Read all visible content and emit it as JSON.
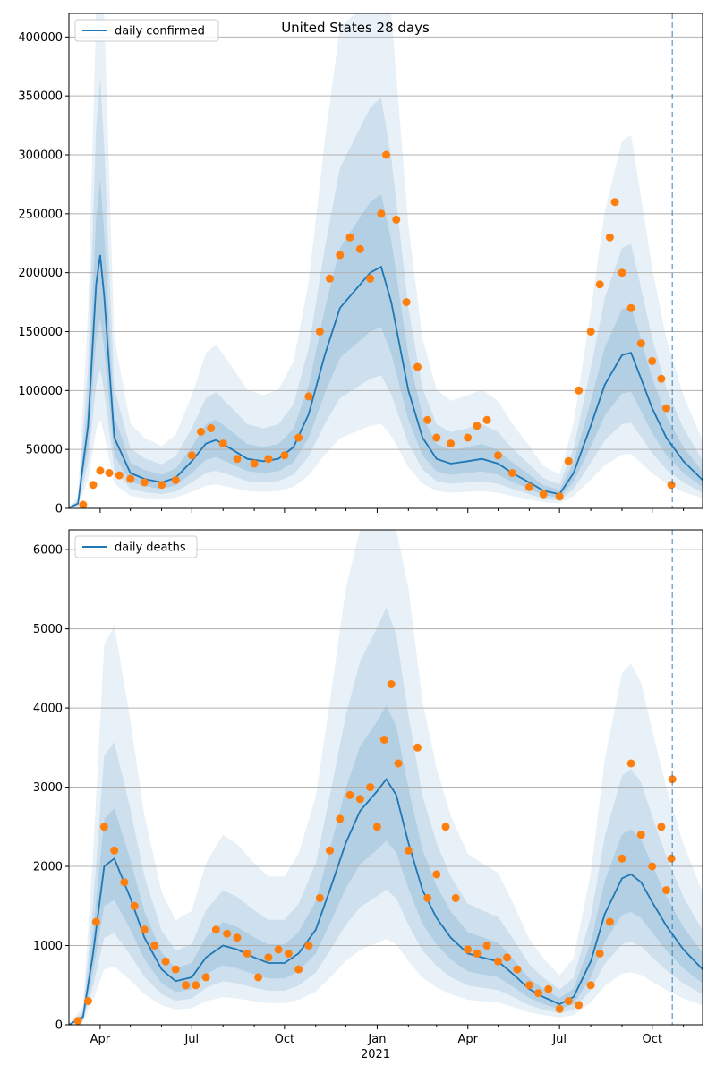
{
  "figure_title": "United States 28 days",
  "x_axis": {
    "month_ticks": [
      "Apr",
      "Jul",
      "Oct",
      "Jan",
      "Apr",
      "Jul",
      "Oct"
    ],
    "year_label": "2021"
  },
  "colors": {
    "line": "#1f77b4",
    "points": "#ff7f0e",
    "band": "#1f77b4",
    "grid": "#b0b0b0",
    "forecast_marker": "#1f77b4"
  },
  "chart_data": [
    {
      "type": "line",
      "title": "United States 28 days",
      "legend_position": "top-left",
      "grid": "horizontal",
      "ylim": [
        0,
        420000
      ],
      "yticks": [
        0,
        50000,
        100000,
        150000,
        200000,
        250000,
        300000,
        350000,
        400000
      ],
      "ytick_labels": [
        "0",
        "50000",
        "100000",
        "150000",
        "200000",
        "250000",
        "300000",
        "350000",
        "400000"
      ],
      "forecast_date": "2021-10-21",
      "series": [
        {
          "name": "daily confirmed",
          "kind": "line",
          "x": [
            "2020-03-01",
            "2020-03-10",
            "2020-03-20",
            "2020-03-28",
            "2020-04-01",
            "2020-04-05",
            "2020-04-15",
            "2020-05-01",
            "2020-05-15",
            "2020-06-01",
            "2020-06-15",
            "2020-07-01",
            "2020-07-15",
            "2020-07-25",
            "2020-08-10",
            "2020-08-25",
            "2020-09-10",
            "2020-09-25",
            "2020-10-10",
            "2020-10-25",
            "2020-11-10",
            "2020-11-25",
            "2020-12-10",
            "2020-12-25",
            "2021-01-05",
            "2021-01-15",
            "2021-02-01",
            "2021-02-15",
            "2021-03-01",
            "2021-03-15",
            "2021-04-01",
            "2021-04-15",
            "2021-05-01",
            "2021-05-15",
            "2021-06-01",
            "2021-06-15",
            "2021-07-01",
            "2021-07-15",
            "2021-08-01",
            "2021-08-15",
            "2021-09-01",
            "2021-09-10",
            "2021-09-20",
            "2021-10-01",
            "2021-10-15",
            "2021-11-01",
            "2021-11-20"
          ],
          "y": [
            500,
            4000,
            70000,
            190000,
            215000,
            180000,
            60000,
            30000,
            25000,
            22000,
            26000,
            40000,
            55000,
            58000,
            50000,
            42000,
            40000,
            42000,
            52000,
            80000,
            130000,
            170000,
            185000,
            200000,
            205000,
            175000,
            100000,
            60000,
            42000,
            38000,
            40000,
            42000,
            38000,
            30000,
            22000,
            15000,
            12000,
            30000,
            70000,
            105000,
            130000,
            132000,
            110000,
            85000,
            60000,
            40000,
            24000
          ]
        },
        {
          "name": "",
          "kind": "scatter",
          "x": [
            "2020-03-15",
            "2020-03-25",
            "2020-04-01",
            "2020-04-10",
            "2020-04-20",
            "2020-05-01",
            "2020-05-15",
            "2020-06-01",
            "2020-06-15",
            "2020-07-01",
            "2020-07-10",
            "2020-07-20",
            "2020-08-01",
            "2020-08-15",
            "2020-09-01",
            "2020-09-15",
            "2020-10-01",
            "2020-10-15",
            "2020-10-25",
            "2020-11-05",
            "2020-11-15",
            "2020-11-25",
            "2020-12-05",
            "2020-12-15",
            "2020-12-25",
            "2021-01-05",
            "2021-01-10",
            "2021-01-20",
            "2021-01-30",
            "2021-02-10",
            "2021-02-20",
            "2021-03-01",
            "2021-03-15",
            "2021-04-01",
            "2021-04-10",
            "2021-04-20",
            "2021-05-01",
            "2021-05-15",
            "2021-06-01",
            "2021-06-15",
            "2021-07-01",
            "2021-07-10",
            "2021-07-20",
            "2021-08-01",
            "2021-08-10",
            "2021-08-20",
            "2021-08-25",
            "2021-09-01",
            "2021-09-10",
            "2021-09-20",
            "2021-10-01",
            "2021-10-10",
            "2021-10-15",
            "2021-10-20"
          ],
          "y": [
            3000,
            20000,
            32000,
            30000,
            28000,
            25000,
            22000,
            20000,
            24000,
            45000,
            65000,
            68000,
            55000,
            42000,
            38000,
            42000,
            45000,
            60000,
            95000,
            150000,
            195000,
            215000,
            230000,
            220000,
            195000,
            250000,
            300000,
            245000,
            175000,
            120000,
            75000,
            60000,
            55000,
            60000,
            70000,
            75000,
            45000,
            30000,
            18000,
            12000,
            10000,
            40000,
            100000,
            150000,
            190000,
            230000,
            260000,
            200000,
            170000,
            140000,
            125000,
            110000,
            85000,
            20000
          ]
        }
      ]
    },
    {
      "type": "line",
      "title": "",
      "legend_position": "top-left",
      "grid": "horizontal",
      "ylim": [
        0,
        6250
      ],
      "yticks": [
        0,
        1000,
        2000,
        3000,
        4000,
        5000,
        6000
      ],
      "ytick_labels": [
        "0",
        "1000",
        "2000",
        "3000",
        "4000",
        "5000",
        "6000"
      ],
      "forecast_date": "2021-10-21",
      "series": [
        {
          "name": "daily deaths",
          "kind": "line",
          "x": [
            "2020-03-01",
            "2020-03-15",
            "2020-03-25",
            "2020-04-05",
            "2020-04-15",
            "2020-05-01",
            "2020-05-15",
            "2020-06-01",
            "2020-06-15",
            "2020-07-01",
            "2020-07-15",
            "2020-08-01",
            "2020-08-15",
            "2020-09-01",
            "2020-09-15",
            "2020-10-01",
            "2020-10-15",
            "2020-11-01",
            "2020-11-15",
            "2020-12-01",
            "2020-12-15",
            "2021-01-01",
            "2021-01-10",
            "2021-01-20",
            "2021-02-01",
            "2021-02-15",
            "2021-03-01",
            "2021-03-15",
            "2021-04-01",
            "2021-04-15",
            "2021-05-01",
            "2021-05-15",
            "2021-06-01",
            "2021-06-15",
            "2021-07-01",
            "2021-07-15",
            "2021-08-01",
            "2021-08-15",
            "2021-09-01",
            "2021-09-10",
            "2021-09-20",
            "2021-10-01",
            "2021-10-15",
            "2021-11-01",
            "2021-11-20"
          ],
          "y": [
            0,
            100,
            900,
            2000,
            2100,
            1600,
            1100,
            700,
            550,
            600,
            850,
            1000,
            950,
            850,
            780,
            780,
            900,
            1200,
            1700,
            2300,
            2700,
            2950,
            3100,
            2900,
            2300,
            1700,
            1350,
            1100,
            900,
            850,
            800,
            650,
            450,
            350,
            260,
            350,
            800,
            1400,
            1850,
            1900,
            1800,
            1550,
            1250,
            950,
            700
          ]
        },
        {
          "name": "",
          "kind": "scatter",
          "x": [
            "2020-03-10",
            "2020-03-20",
            "2020-03-28",
            "2020-04-05",
            "2020-04-15",
            "2020-04-25",
            "2020-05-05",
            "2020-05-15",
            "2020-05-25",
            "2020-06-05",
            "2020-06-15",
            "2020-06-25",
            "2020-07-05",
            "2020-07-15",
            "2020-07-25",
            "2020-08-05",
            "2020-08-15",
            "2020-08-25",
            "2020-09-05",
            "2020-09-15",
            "2020-09-25",
            "2020-10-05",
            "2020-10-15",
            "2020-10-25",
            "2020-11-05",
            "2020-11-15",
            "2020-11-25",
            "2020-12-05",
            "2020-12-15",
            "2020-12-25",
            "2021-01-01",
            "2021-01-08",
            "2021-01-15",
            "2021-01-22",
            "2021-02-01",
            "2021-02-10",
            "2021-02-20",
            "2021-03-01",
            "2021-03-10",
            "2021-03-20",
            "2021-04-01",
            "2021-04-10",
            "2021-04-20",
            "2021-05-01",
            "2021-05-10",
            "2021-05-20",
            "2021-06-01",
            "2021-06-10",
            "2021-06-20",
            "2021-07-01",
            "2021-07-10",
            "2021-07-20",
            "2021-08-01",
            "2021-08-10",
            "2021-08-20",
            "2021-09-01",
            "2021-09-10",
            "2021-09-20",
            "2021-10-01",
            "2021-10-10",
            "2021-10-15",
            "2021-10-20",
            "2021-10-21"
          ],
          "y": [
            50,
            300,
            1300,
            2500,
            2200,
            1800,
            1500,
            1200,
            1000,
            800,
            700,
            500,
            500,
            600,
            1200,
            1150,
            1100,
            900,
            600,
            850,
            950,
            900,
            700,
            1000,
            1600,
            2200,
            2600,
            2900,
            2850,
            3000,
            2500,
            3600,
            4300,
            3300,
            2200,
            3500,
            1600,
            1900,
            2500,
            1600,
            950,
            900,
            1000,
            800,
            850,
            700,
            500,
            400,
            450,
            200,
            300,
            250,
            500,
            900,
            1300,
            2100,
            3300,
            2400,
            2000,
            2500,
            1700,
            2100,
            3100
          ]
        }
      ]
    }
  ]
}
